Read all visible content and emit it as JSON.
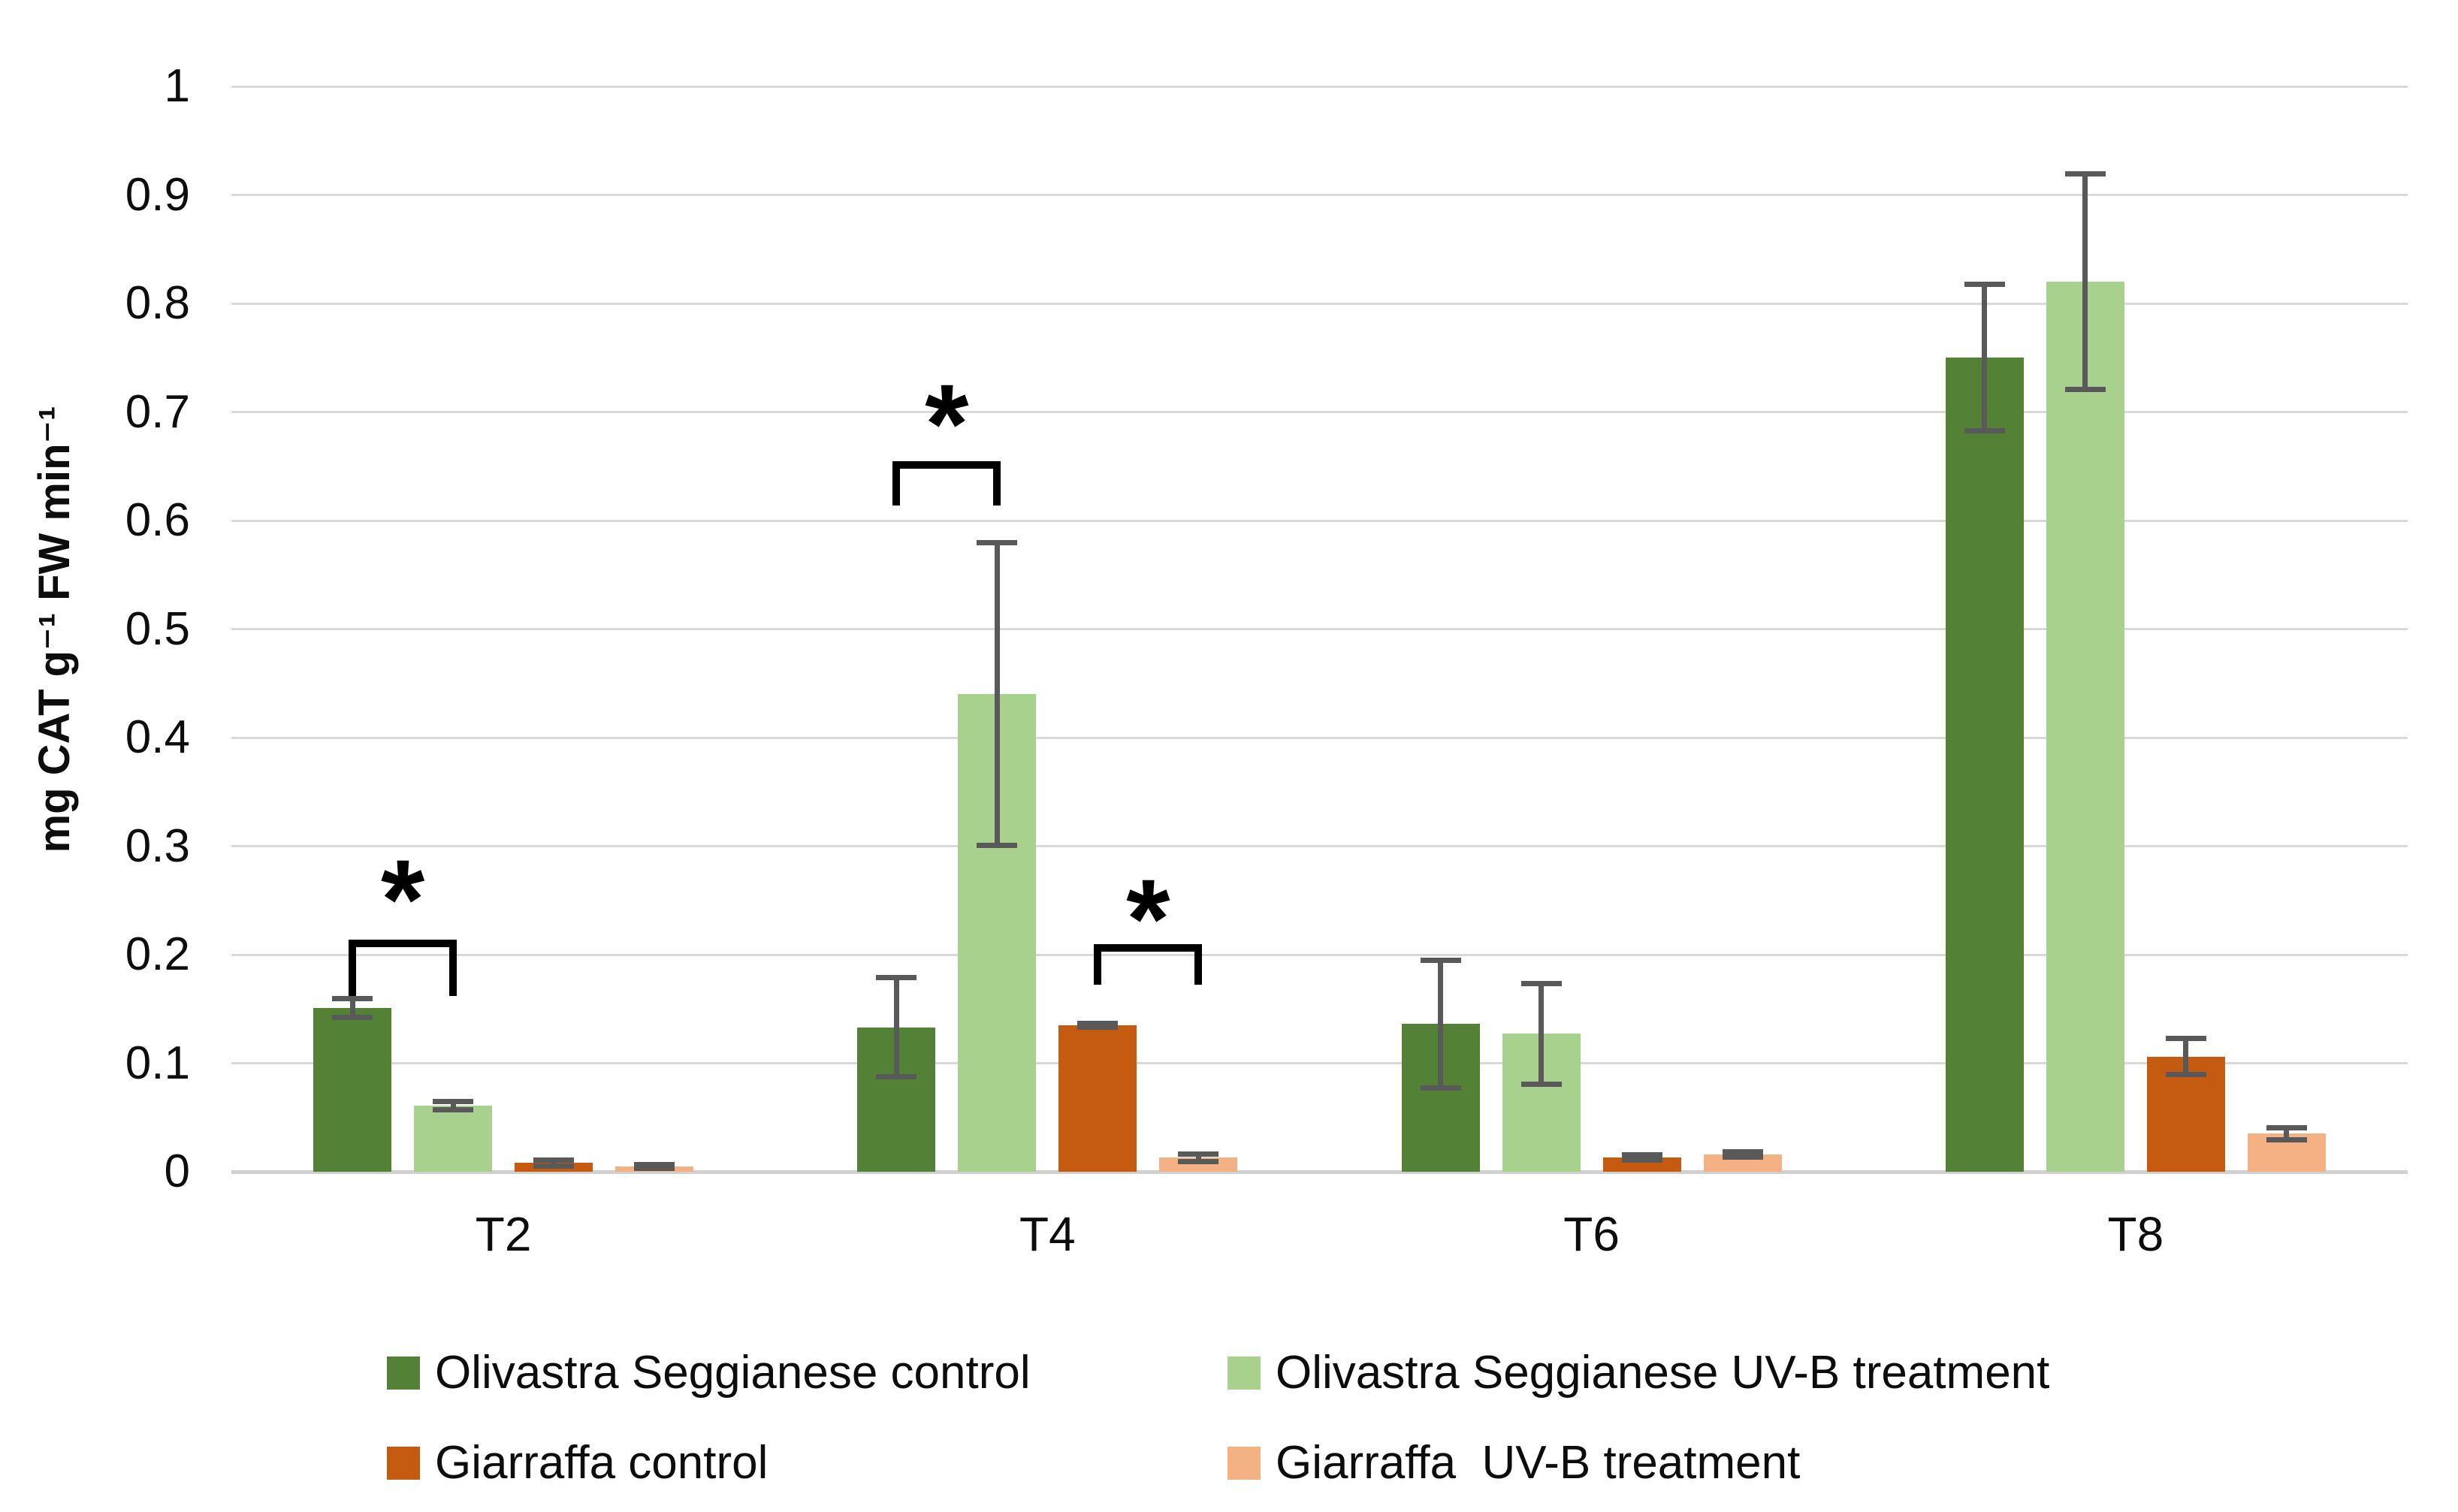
{
  "chart_data": {
    "type": "bar",
    "title": "",
    "xlabel": "",
    "ylabel": "mg CAT g⁻¹ FW min⁻¹",
    "ylim": [
      0,
      1
    ],
    "grid": true,
    "legend_position": "bottom",
    "categories": [
      "T2",
      "T4",
      "T6",
      "T8"
    ],
    "y_ticks": [
      "0",
      "0.1",
      "0.2",
      "0.3",
      "0.4",
      "0.5",
      "0.6",
      "0.7",
      "0.8",
      "0.9",
      "1"
    ],
    "series": [
      {
        "name": "Olivastra Seggianese control",
        "color": "#538135",
        "values": [
          0.151,
          0.133,
          0.136,
          0.75
        ],
        "errors": [
          0.011,
          0.048,
          0.061,
          0.07
        ]
      },
      {
        "name": "Olivastra Seggianese UV-B treatment",
        "color": "#A9D18E",
        "values": [
          0.061,
          0.44,
          0.127,
          0.82
        ],
        "errors": [
          0.006,
          0.142,
          0.049,
          0.102
        ]
      },
      {
        "name": "Giarraffa control",
        "color": "#C55A11",
        "values": [
          0.008,
          0.135,
          0.013,
          0.106
        ],
        "errors": [
          0.005,
          0.004,
          0.005,
          0.019
        ]
      },
      {
        "name": "Giarraffa  UV-B treatment",
        "color": "#F4B183",
        "values": [
          0.005,
          0.013,
          0.016,
          0.035
        ],
        "errors": [
          0.004,
          0.006,
          0.005,
          0.008
        ]
      }
    ],
    "significance": [
      {
        "category": "T2",
        "between": [
          0,
          1
        ],
        "label": "*",
        "bracket_top": 0.214,
        "feet_to": 0.162,
        "star_y": 0.27
      },
      {
        "category": "T4",
        "between": [
          0,
          1
        ],
        "label": "*",
        "bracket_top": 0.655,
        "feet_to": 0.614,
        "star_y": 0.708
      },
      {
        "category": "T4",
        "between": [
          2,
          3
        ],
        "label": "*",
        "bracket_top": 0.21,
        "feet_to": 0.172,
        "star_y": 0.252
      }
    ],
    "colors": {
      "gridline": "#d9d9d9",
      "baseline": "#d0d0d0",
      "error_bar": "#595959",
      "text": "#000000"
    }
  }
}
